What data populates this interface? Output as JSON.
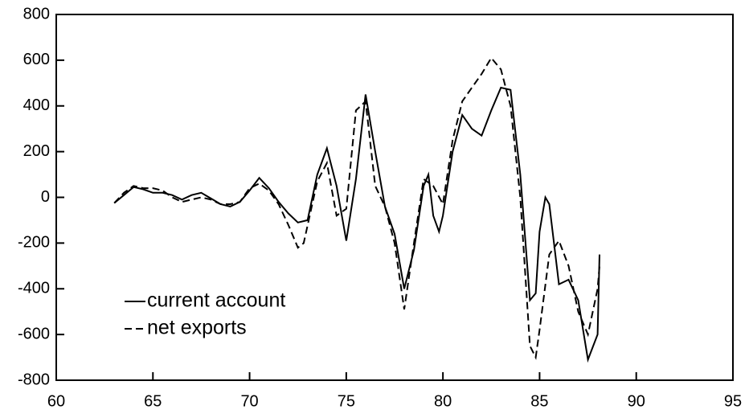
{
  "chart_data": {
    "type": "line",
    "xlim": [
      60,
      95
    ],
    "xticks": [
      60,
      65,
      70,
      75,
      80,
      85,
      90,
      95
    ],
    "ylim": [
      -800,
      800
    ],
    "yticks": [
      -800,
      -600,
      -400,
      -200,
      0,
      200,
      400,
      600,
      800
    ],
    "legend": "lower left",
    "series": [
      {
        "name": "current account",
        "color": "#000000",
        "dash": "solid",
        "x": [
          63.0,
          63.5,
          64.0,
          64.5,
          65.0,
          65.5,
          66.0,
          66.5,
          67.0,
          67.5,
          68.0,
          68.5,
          69.0,
          69.5,
          70.0,
          70.5,
          71.0,
          71.5,
          72.0,
          72.5,
          73.0,
          73.5,
          74.0,
          74.5,
          75.0,
          75.5,
          76.0,
          76.5,
          77.0,
          77.5,
          78.0,
          78.5,
          79.0,
          79.25,
          79.5,
          79.8,
          80.0,
          80.5,
          81.0,
          81.5,
          82.0,
          82.5,
          83.0,
          83.5,
          84.0,
          84.5,
          84.8,
          85.0,
          85.3,
          85.5,
          86.0,
          86.5,
          87.0,
          87.5,
          88.0,
          88.1
        ],
        "values": [
          -25,
          10,
          45,
          35,
          20,
          20,
          10,
          -10,
          10,
          20,
          -5,
          -30,
          -40,
          -20,
          30,
          85,
          40,
          -20,
          -70,
          -110,
          -100,
          100,
          215,
          50,
          -190,
          80,
          450,
          200,
          -40,
          -160,
          -400,
          -230,
          50,
          100,
          -80,
          -150,
          -80,
          200,
          360,
          300,
          270,
          380,
          480,
          470,
          100,
          -450,
          -420,
          -150,
          0,
          -30,
          -380,
          -360,
          -450,
          -710,
          -600,
          -250
        ]
      },
      {
        "name": "net exports",
        "color": "#000000",
        "dash": "dashed",
        "x": [
          63.0,
          63.5,
          64.0,
          64.5,
          65.0,
          65.5,
          66.0,
          66.5,
          67.0,
          67.5,
          68.0,
          68.5,
          69.0,
          69.5,
          70.0,
          70.5,
          71.0,
          71.5,
          72.0,
          72.5,
          72.8,
          73.5,
          74.0,
          74.5,
          75.0,
          75.5,
          76.0,
          76.5,
          77.0,
          77.5,
          78.0,
          78.5,
          79.0,
          79.5,
          80.0,
          80.5,
          81.0,
          81.5,
          82.0,
          82.5,
          83.0,
          83.5,
          84.0,
          84.5,
          84.8,
          85.0,
          85.5,
          86.0,
          86.5,
          87.0,
          87.5,
          88.0,
          88.1
        ],
        "values": [
          -25,
          20,
          50,
          40,
          40,
          30,
          0,
          -20,
          -10,
          0,
          -10,
          -30,
          -30,
          -20,
          40,
          60,
          30,
          -30,
          -120,
          -220,
          -200,
          70,
          150,
          -80,
          -50,
          380,
          420,
          50,
          -40,
          -200,
          -490,
          -200,
          80,
          50,
          -30,
          250,
          420,
          480,
          540,
          610,
          560,
          400,
          0,
          -650,
          -700,
          -580,
          -250,
          -190,
          -300,
          -500,
          -600,
          -400,
          -300
        ]
      }
    ]
  }
}
